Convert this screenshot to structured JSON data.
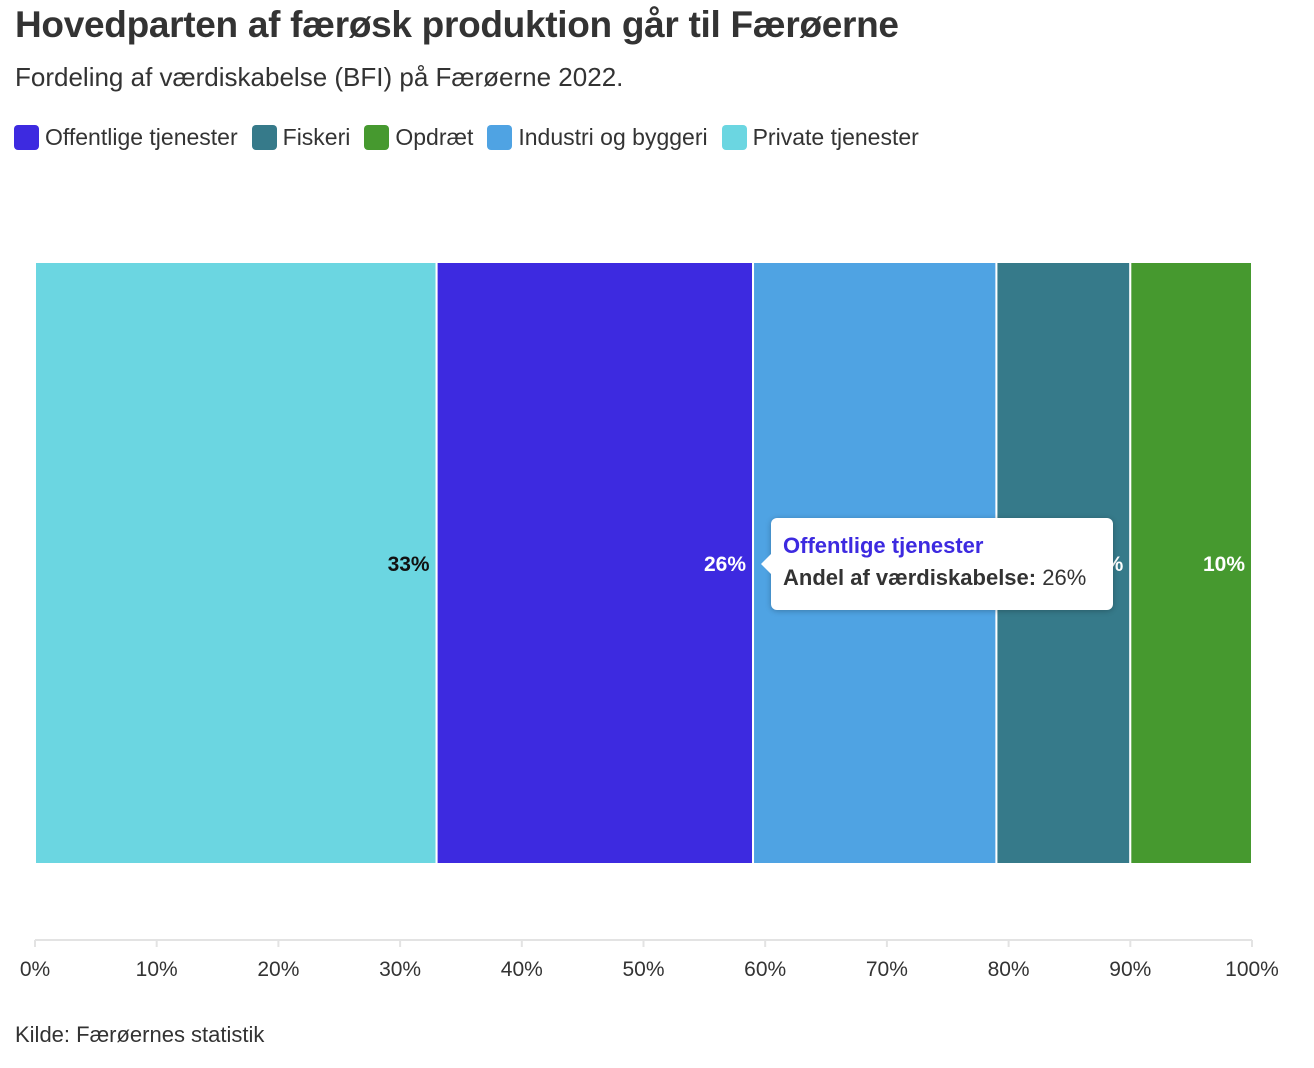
{
  "header": {
    "title": "Hovedparten af færøsk produktion går til Færøerne",
    "subtitle": "Fordeling af værdiskabelse (BFI) på Færøerne 2022."
  },
  "legend": [
    {
      "label": "Offentlige tjenester",
      "color": "#3d2ae0"
    },
    {
      "label": "Fiskeri",
      "color": "#367a8a"
    },
    {
      "label": "Opdræt",
      "color": "#46992f"
    },
    {
      "label": "Industri og byggeri",
      "color": "#4fa3e3"
    },
    {
      "label": "Private tjenester",
      "color": "#6bd6e1"
    }
  ],
  "chart_data": {
    "type": "bar",
    "orientation": "horizontal-stacked-100",
    "title": "Hovedparten af færøsk produktion går til Færøerne",
    "subtitle": "Fordeling af værdiskabelse (BFI) på Færøerne 2022.",
    "series": [
      {
        "name": "Private tjenester",
        "value": 33,
        "label": "33%",
        "color": "#6bd6e1",
        "label_color": "#111111"
      },
      {
        "name": "Offentlige tjenester",
        "value": 26,
        "label": "26%",
        "color": "#3d2ae0",
        "label_color": "#ffffff"
      },
      {
        "name": "Industri og byggeri",
        "value": 20,
        "label": "",
        "color": "#4fa3e3",
        "label_color": "#ffffff"
      },
      {
        "name": "Fiskeri",
        "value": 11,
        "label": "%",
        "color": "#367a8a",
        "label_color": "#ffffff"
      },
      {
        "name": "Opdræt",
        "value": 10,
        "label": "10%",
        "color": "#46992f",
        "label_color": "#ffffff"
      }
    ],
    "xlim": [
      0,
      100
    ],
    "xticks": [
      "0%",
      "10%",
      "20%",
      "30%",
      "40%",
      "50%",
      "60%",
      "70%",
      "80%",
      "90%",
      "100%"
    ],
    "legend_position": "top-left"
  },
  "tooltip": {
    "title": "Offentlige tjenester",
    "metric_label": "Andel af værdiskabelse:",
    "metric_value": "26%"
  },
  "source": "Kilde: Færøernes statistik"
}
